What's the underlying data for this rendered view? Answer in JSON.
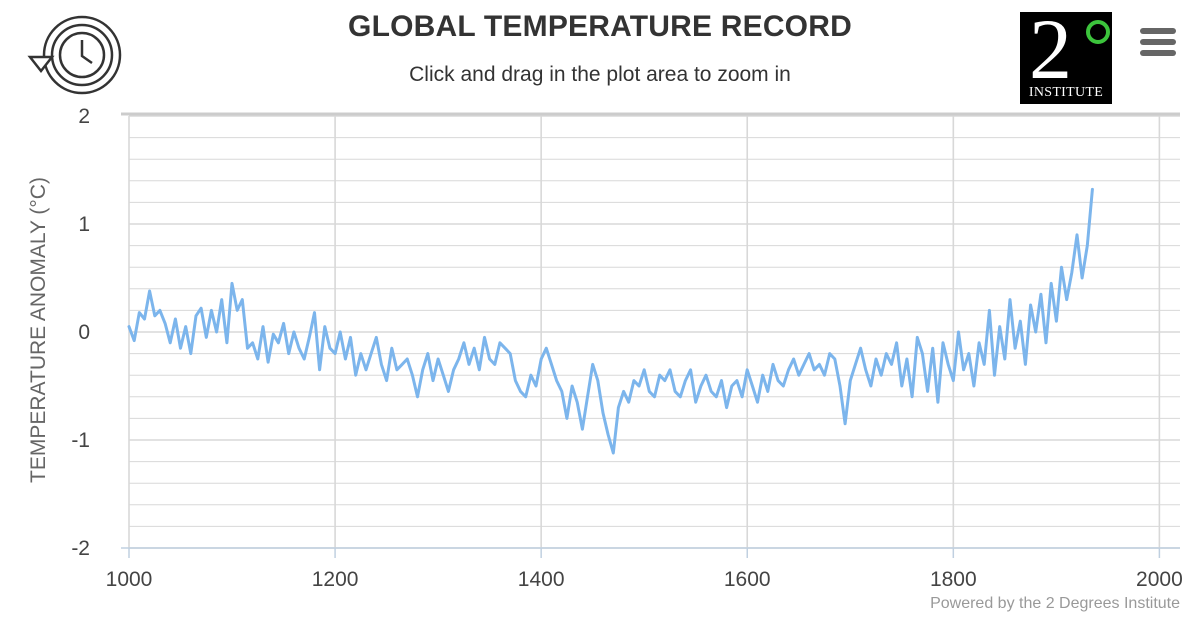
{
  "header": {
    "title": "GLOBAL TEMPERATURE RECORD",
    "subtitle": "Click and drag in the plot area to zoom in"
  },
  "toolbar": {
    "history_icon": "history-clock-icon",
    "menu_icon": "hamburger-menu-icon"
  },
  "logo": {
    "digit": "2",
    "label": "INSTITUTE"
  },
  "footer": {
    "credit": "Powered by the 2 Degrees Institute"
  },
  "colors": {
    "series": "#7cb5ec",
    "grid": "#d8d8d8",
    "axis": "#c0d0e0",
    "logo_ring": "#3cc43c"
  },
  "chart_data": {
    "type": "line",
    "title": "GLOBAL TEMPERATURE RECORD",
    "subtitle": "Click and drag in the plot area to zoom in",
    "xlabel": "",
    "ylabel": "TEMPERATURE ANOMALY (°C)",
    "xlim": [
      1000,
      2020
    ],
    "ylim": [
      -2,
      2
    ],
    "xticks": [
      1000,
      1200,
      1400,
      1600,
      1800,
      2000
    ],
    "yticks": [
      -2,
      -1,
      0,
      1,
      2
    ],
    "grid": true,
    "series": [
      {
        "name": "Temperature anomaly",
        "x_start": 1000,
        "x_step": 5,
        "values": [
          0.05,
          -0.08,
          0.18,
          0.12,
          0.38,
          0.15,
          0.2,
          0.08,
          -0.1,
          0.12,
          -0.15,
          0.05,
          -0.2,
          0.15,
          0.22,
          -0.05,
          0.2,
          0.0,
          0.3,
          -0.1,
          0.45,
          0.2,
          0.3,
          -0.15,
          -0.1,
          -0.25,
          0.05,
          -0.28,
          -0.02,
          -0.1,
          0.08,
          -0.2,
          0.0,
          -0.15,
          -0.25,
          -0.05,
          0.18,
          -0.35,
          0.05,
          -0.15,
          -0.2,
          0.0,
          -0.25,
          -0.05,
          -0.4,
          -0.2,
          -0.35,
          -0.2,
          -0.05,
          -0.3,
          -0.45,
          -0.15,
          -0.35,
          -0.3,
          -0.25,
          -0.4,
          -0.6,
          -0.35,
          -0.2,
          -0.45,
          -0.25,
          -0.4,
          -0.55,
          -0.35,
          -0.25,
          -0.1,
          -0.3,
          -0.15,
          -0.35,
          -0.05,
          -0.25,
          -0.3,
          -0.1,
          -0.15,
          -0.2,
          -0.45,
          -0.55,
          -0.6,
          -0.4,
          -0.5,
          -0.25,
          -0.15,
          -0.3,
          -0.45,
          -0.55,
          -0.8,
          -0.5,
          -0.65,
          -0.9,
          -0.6,
          -0.3,
          -0.45,
          -0.75,
          -0.95,
          -1.12,
          -0.7,
          -0.55,
          -0.65,
          -0.45,
          -0.5,
          -0.35,
          -0.55,
          -0.6,
          -0.4,
          -0.45,
          -0.35,
          -0.55,
          -0.6,
          -0.45,
          -0.35,
          -0.65,
          -0.5,
          -0.4,
          -0.55,
          -0.6,
          -0.45,
          -0.7,
          -0.5,
          -0.45,
          -0.6,
          -0.35,
          -0.5,
          -0.65,
          -0.4,
          -0.55,
          -0.3,
          -0.45,
          -0.5,
          -0.35,
          -0.25,
          -0.4,
          -0.3,
          -0.2,
          -0.35,
          -0.3,
          -0.4,
          -0.2,
          -0.25,
          -0.5,
          -0.85,
          -0.45,
          -0.3,
          -0.15,
          -0.35,
          -0.5,
          -0.25,
          -0.4,
          -0.2,
          -0.3,
          -0.1,
          -0.5,
          -0.25,
          -0.6,
          -0.05,
          -0.2,
          -0.55,
          -0.15,
          -0.65,
          -0.1,
          -0.3,
          -0.45,
          0.0,
          -0.35,
          -0.2,
          -0.5,
          -0.1,
          -0.3,
          0.2,
          -0.4,
          0.05,
          -0.25,
          0.3,
          -0.15,
          0.1,
          -0.3,
          0.25,
          0.0,
          0.35,
          -0.1,
          0.45,
          0.1,
          0.6,
          0.3,
          0.55,
          0.9,
          0.5,
          0.8,
          1.32
        ]
      }
    ]
  }
}
